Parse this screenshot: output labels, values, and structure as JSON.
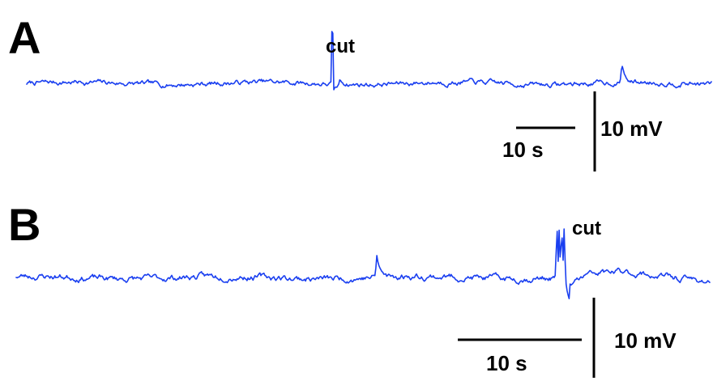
{
  "colors": {
    "trace": "#1a3ff0",
    "ink": "#000000",
    "background": "#ffffff"
  },
  "chart_data": [
    {
      "type": "line",
      "panel_label": "A",
      "annotations": [
        {
          "text": "cut",
          "x": 29.0
        }
      ],
      "scale_bar": {
        "time_label": "10 s",
        "time_s": 10,
        "voltage_label": "10 mV",
        "voltage_mV": 10
      },
      "x_range_s": [
        0,
        65
      ],
      "y_range_mV": [
        -4,
        12
      ],
      "series": [
        {
          "events": [
            {
              "t": 29.0,
              "kind": "cut-spike",
              "peak_mV": 10.5,
              "undershoot_mV": -2.0
            },
            {
              "t": 56.5,
              "kind": "small-spike",
              "peak_mV": 4.0,
              "undershoot_mV": 0
            }
          ],
          "baseline_mV": 0,
          "noise_mV": 0.45
        }
      ]
    },
    {
      "type": "line",
      "panel_label": "B",
      "annotations": [
        {
          "text": "cut",
          "x": 51.0
        }
      ],
      "scale_bar": {
        "time_label": "10 s",
        "time_s": 10,
        "voltage_label": "10 mV",
        "voltage_mV": 10
      },
      "x_range_s": [
        0,
        65
      ],
      "y_range_mV": [
        -4,
        12
      ],
      "series": [
        {
          "events": [
            {
              "t": 33.8,
              "kind": "small-spike",
              "peak_mV": 4.2,
              "undershoot_mV": 0
            },
            {
              "t": 50.9,
              "kind": "cut-burst",
              "peak_mV": 9.0,
              "undershoot_mV": -5.0
            }
          ],
          "baseline_mV": 0,
          "noise_mV": 0.5
        }
      ]
    }
  ]
}
